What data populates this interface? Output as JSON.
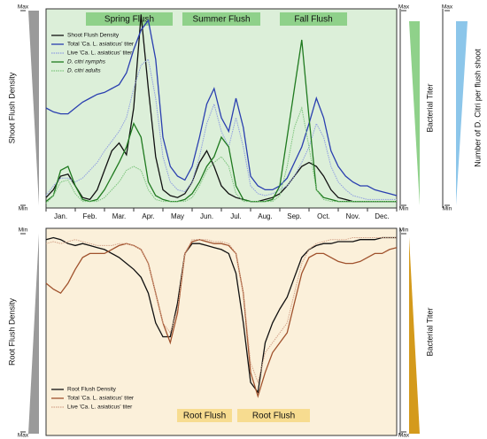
{
  "chart_data": [
    {
      "type": "line",
      "ylabel": "Shoot Flush Density",
      "y2label": "Bacterial Titer",
      "y3label": "Number of D. Citri per flush shoot",
      "annotations": [
        "Spring Flush",
        "Summer Flush",
        "Fall Flush"
      ],
      "categories": [
        "Jan.",
        "Feb.",
        "Mar.",
        "Apr.",
        "May",
        "Jun.",
        "Jul.",
        "Aug.",
        "Sep.",
        "Oct.",
        "Nov.",
        "Dec."
      ],
      "x": [
        0,
        0.25,
        0.5,
        0.75,
        1,
        1.25,
        1.5,
        1.75,
        2,
        2.25,
        2.5,
        2.75,
        3,
        3.25,
        3.5,
        3.75,
        4,
        4.25,
        4.5,
        4.75,
        5,
        5.25,
        5.5,
        5.75,
        6,
        6.25,
        6.5,
        6.75,
        7,
        7.25,
        7.5,
        7.75,
        8,
        8.25,
        8.5,
        8.75,
        9,
        9.25,
        9.5,
        9.75,
        10,
        10.25,
        10.5,
        10.75,
        11,
        11.25,
        11.5,
        11.75,
        12
      ],
      "xlim": [
        0,
        12
      ],
      "ylim": [
        0,
        1
      ],
      "yticks": [
        {
          "value": 0,
          "label": "Min"
        },
        {
          "value": 1,
          "label": "Max"
        }
      ],
      "y2lim": [
        0,
        1
      ],
      "y2ticks": [
        {
          "value": 0,
          "label": "Min"
        },
        {
          "value": 1,
          "label": "Max"
        }
      ],
      "y3lim": [
        0,
        1
      ],
      "y3ticks": [
        {
          "value": 0,
          "label": "Min"
        },
        {
          "value": 1,
          "label": "Max"
        }
      ],
      "grid": false,
      "legend": "upper left",
      "background": "#dcefd9",
      "series": [
        {
          "name": "Shoot Flush Density",
          "color": "#111111",
          "dash": "solid",
          "axis": "y",
          "values": [
            0.04,
            0.08,
            0.15,
            0.16,
            0.1,
            0.04,
            0.03,
            0.08,
            0.18,
            0.28,
            0.32,
            0.26,
            0.5,
            0.98,
            0.6,
            0.25,
            0.08,
            0.05,
            0.04,
            0.06,
            0.12,
            0.22,
            0.28,
            0.2,
            0.1,
            0.06,
            0.04,
            0.03,
            0.02,
            0.02,
            0.03,
            0.04,
            0.06,
            0.1,
            0.15,
            0.2,
            0.22,
            0.2,
            0.15,
            0.08,
            0.04,
            0.03,
            0.02,
            0.02,
            0.02,
            0.02,
            0.02,
            0.02,
            0.02
          ]
        },
        {
          "name": "Total 'Ca. L. asiaticus' titer",
          "color": "#2a3fb0",
          "dash": "solid",
          "axis": "y2",
          "values": [
            0.5,
            0.48,
            0.47,
            0.47,
            0.5,
            0.53,
            0.55,
            0.57,
            0.58,
            0.6,
            0.62,
            0.68,
            0.8,
            0.9,
            0.95,
            0.75,
            0.35,
            0.2,
            0.15,
            0.13,
            0.2,
            0.35,
            0.52,
            0.6,
            0.45,
            0.38,
            0.55,
            0.4,
            0.15,
            0.1,
            0.08,
            0.08,
            0.1,
            0.14,
            0.22,
            0.3,
            0.42,
            0.55,
            0.45,
            0.28,
            0.2,
            0.15,
            0.12,
            0.1,
            0.1,
            0.08,
            0.07,
            0.06,
            0.05
          ]
        },
        {
          "name": "Live 'Ca. L. asiaticus' titer",
          "color": "#8f9ee0",
          "dash": "dotted",
          "axis": "y2",
          "values": [
            0.05,
            0.1,
            0.14,
            0.14,
            0.12,
            0.14,
            0.18,
            0.22,
            0.28,
            0.33,
            0.38,
            0.45,
            0.6,
            0.72,
            0.75,
            0.55,
            0.25,
            0.12,
            0.08,
            0.07,
            0.12,
            0.25,
            0.42,
            0.52,
            0.38,
            0.3,
            0.45,
            0.3,
            0.1,
            0.06,
            0.05,
            0.06,
            0.08,
            0.1,
            0.15,
            0.22,
            0.3,
            0.42,
            0.35,
            0.2,
            0.12,
            0.08,
            0.05,
            0.04,
            0.03,
            0.03,
            0.03,
            0.03,
            0.03
          ]
        },
        {
          "name": "D. citri nymphs",
          "color": "#1f7a1f",
          "dash": "solid",
          "axis": "y3",
          "values": [
            0.02,
            0.05,
            0.18,
            0.2,
            0.1,
            0.03,
            0.02,
            0.03,
            0.08,
            0.15,
            0.22,
            0.3,
            0.42,
            0.35,
            0.12,
            0.05,
            0.03,
            0.02,
            0.02,
            0.03,
            0.06,
            0.12,
            0.2,
            0.25,
            0.35,
            0.3,
            0.1,
            0.03,
            0.02,
            0.02,
            0.02,
            0.03,
            0.1,
            0.35,
            0.6,
            0.85,
            0.45,
            0.08,
            0.04,
            0.03,
            0.02,
            0.02,
            0.02,
            0.02,
            0.02,
            0.02,
            0.02,
            0.02,
            0.02
          ]
        },
        {
          "name": "D. citri adults",
          "color": "#7cc47c",
          "dash": "dotted",
          "axis": "y3",
          "values": [
            0.01,
            0.05,
            0.12,
            0.13,
            0.06,
            0.02,
            0.02,
            0.02,
            0.04,
            0.08,
            0.12,
            0.18,
            0.2,
            0.18,
            0.08,
            0.03,
            0.02,
            0.02,
            0.02,
            0.02,
            0.04,
            0.1,
            0.18,
            0.22,
            0.25,
            0.2,
            0.06,
            0.02,
            0.02,
            0.02,
            0.02,
            0.02,
            0.05,
            0.2,
            0.4,
            0.5,
            0.3,
            0.08,
            0.03,
            0.02,
            0.02,
            0.02,
            0.02,
            0.02,
            0.02,
            0.02,
            0.02,
            0.02,
            0.02
          ]
        }
      ]
    },
    {
      "type": "line",
      "ylabel": "Root Flush Density",
      "y2label": "Bacterial Titer",
      "annotations": [
        "Root Flush",
        "Root Flush"
      ],
      "x": [
        0,
        0.25,
        0.5,
        0.75,
        1,
        1.25,
        1.5,
        1.75,
        2,
        2.25,
        2.5,
        2.75,
        3,
        3.25,
        3.5,
        3.75,
        4,
        4.25,
        4.5,
        4.75,
        5,
        5.25,
        5.5,
        5.75,
        6,
        6.25,
        6.5,
        6.75,
        7,
        7.25,
        7.5,
        7.75,
        8,
        8.25,
        8.5,
        8.75,
        9,
        9.25,
        9.5,
        9.75,
        10,
        10.25,
        10.5,
        10.75,
        11,
        11.25,
        11.5,
        11.75,
        12
      ],
      "xlim": [
        0,
        12
      ],
      "ylim": [
        0,
        1
      ],
      "yticks": [
        {
          "value": 0,
          "label": "Min"
        },
        {
          "value": 1,
          "label": "Max"
        }
      ],
      "yinvert": true,
      "y2lim": [
        0,
        1
      ],
      "y2ticks": [
        {
          "value": 0,
          "label": "Min"
        },
        {
          "value": 1,
          "label": "Max"
        }
      ],
      "grid": false,
      "legend": "lower left",
      "background": "#fbf0da",
      "series": [
        {
          "name": "Root Flush Density",
          "color": "#111111",
          "dash": "solid",
          "axis": "y",
          "values": [
            0.03,
            0.02,
            0.03,
            0.05,
            0.06,
            0.05,
            0.06,
            0.07,
            0.08,
            0.1,
            0.12,
            0.15,
            0.18,
            0.22,
            0.3,
            0.45,
            0.52,
            0.52,
            0.35,
            0.1,
            0.05,
            0.05,
            0.06,
            0.07,
            0.08,
            0.1,
            0.2,
            0.45,
            0.75,
            0.8,
            0.55,
            0.45,
            0.38,
            0.32,
            0.22,
            0.12,
            0.08,
            0.06,
            0.05,
            0.05,
            0.04,
            0.04,
            0.04,
            0.03,
            0.03,
            0.03,
            0.02,
            0.02,
            0.02
          ]
        },
        {
          "name": "Total 'Ca. L. asiaticus' titer",
          "color": "#a0522d",
          "dash": "solid",
          "axis": "y2",
          "values": [
            0.25,
            0.28,
            0.3,
            0.25,
            0.18,
            0.12,
            0.1,
            0.1,
            0.1,
            0.08,
            0.06,
            0.05,
            0.06,
            0.08,
            0.15,
            0.3,
            0.45,
            0.55,
            0.4,
            0.1,
            0.04,
            0.03,
            0.04,
            0.05,
            0.05,
            0.06,
            0.1,
            0.3,
            0.7,
            0.82,
            0.7,
            0.6,
            0.55,
            0.5,
            0.35,
            0.2,
            0.12,
            0.1,
            0.1,
            0.12,
            0.14,
            0.15,
            0.15,
            0.14,
            0.12,
            0.1,
            0.1,
            0.08,
            0.07
          ]
        },
        {
          "name": "Live 'Ca. L. asiaticus' titer",
          "color": "#d4a48a",
          "dash": "dotted",
          "axis": "y2",
          "values": [
            0.05,
            0.04,
            0.05,
            0.04,
            0.03,
            0.04,
            0.05,
            0.06,
            0.06,
            0.06,
            0.05,
            0.05,
            0.06,
            0.08,
            0.15,
            0.3,
            0.45,
            0.5,
            0.38,
            0.1,
            0.03,
            0.03,
            0.03,
            0.04,
            0.04,
            0.05,
            0.1,
            0.3,
            0.65,
            0.75,
            0.6,
            0.55,
            0.5,
            0.45,
            0.3,
            0.15,
            0.08,
            0.05,
            0.04,
            0.03,
            0.03,
            0.03,
            0.02,
            0.02,
            0.02,
            0.02,
            0.02,
            0.02,
            0.02
          ]
        }
      ]
    }
  ]
}
